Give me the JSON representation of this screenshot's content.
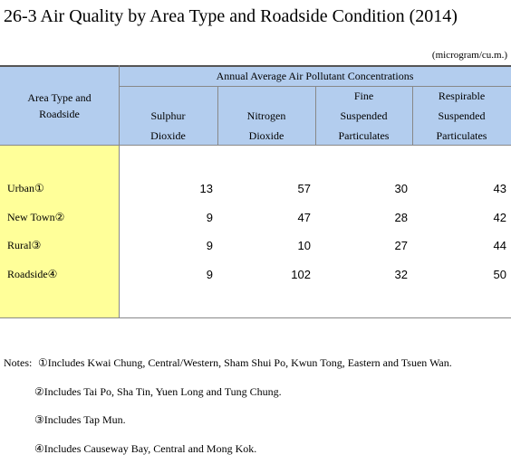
{
  "header": {
    "title": "26-3  Air Quality by Area Type and Roadside Condition (2014)",
    "unit": "(microgram/cu.m.)"
  },
  "table": {
    "corner": [
      "Area Type and",
      "Roadside"
    ],
    "group_header": "Annual Average Air Pollutant Concentrations",
    "columns": [
      [
        "Sulphur",
        "Dioxide"
      ],
      [
        "Nitrogen",
        "Dioxide"
      ],
      [
        "Fine",
        "Suspended",
        "Particulates"
      ],
      [
        "Respirable",
        "Suspended",
        "Particulates"
      ]
    ],
    "rows": [
      {
        "label": "Urban①",
        "values": [
          13,
          57,
          30,
          43
        ]
      },
      {
        "label": "New Town②",
        "values": [
          9,
          47,
          28,
          42
        ]
      },
      {
        "label": "Rural③",
        "values": [
          9,
          10,
          27,
          44
        ]
      },
      {
        "label": "Roadside④",
        "values": [
          9,
          102,
          32,
          50
        ]
      }
    ]
  },
  "notes": {
    "label": "Notes:",
    "items": [
      "①Includes Kwai Chung, Central/Western, Sham Shui Po, Kwun Tong, Eastern and Tsuen Wan.",
      "②Includes Tai Po, Sha Tin, Yuen Long and Tung Chung.",
      "③Includes Tap Mun.",
      "④Includes Causeway Bay, Central and Mong Kok."
    ]
  }
}
